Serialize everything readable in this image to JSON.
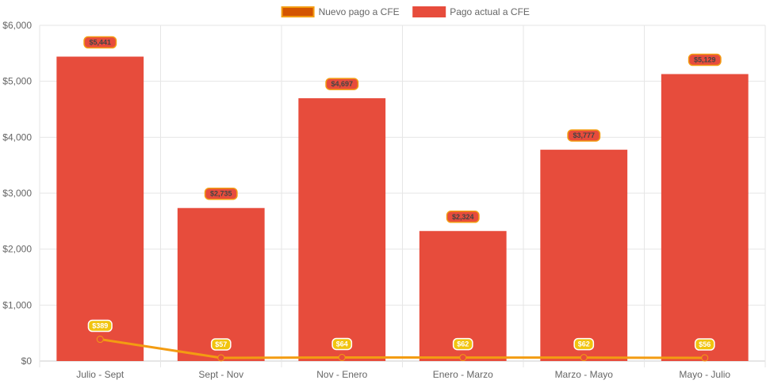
{
  "chart_data": {
    "type": "bar",
    "categories": [
      "Julio - Sept",
      "Sept - Nov",
      "Nov - Enero",
      "Enero - Marzo",
      "Marzo - Mayo",
      "Mayo - Julio"
    ],
    "series": [
      {
        "name": "Nuevo pago a CFE",
        "kind": "line",
        "color": "#f39c12",
        "point_color": "#e74c3c",
        "values": [
          389,
          57,
          64,
          62,
          62,
          56
        ],
        "labels": [
          "$389",
          "$57",
          "$64",
          "$62",
          "$62",
          "$56"
        ]
      },
      {
        "name": "Pago actual a CFE",
        "kind": "bar",
        "color": "#e74c3c",
        "label_bg": "#e74c3c",
        "label_border": "#f39c12",
        "values": [
          5441,
          2735,
          4697,
          2324,
          3777,
          5129
        ],
        "labels": [
          "$5,441",
          "$2,735",
          "$4,697",
          "$2,324",
          "$3,777",
          "$5,129"
        ]
      }
    ],
    "legend": {
      "position": "top",
      "items": [
        {
          "label": "Nuevo pago a CFE",
          "fill": "#d35400",
          "border": "#f39c12"
        },
        {
          "label": "Pago actual a CFE",
          "fill": "#e74c3c",
          "border": "#e74c3c"
        }
      ]
    },
    "ylim": [
      0,
      6000
    ],
    "yticks": [
      0,
      1000,
      2000,
      3000,
      4000,
      5000,
      6000
    ],
    "ytick_labels": [
      "$0",
      "$1,000",
      "$2,000",
      "$3,000",
      "$4,000",
      "$5,000",
      "$6,000"
    ],
    "grid": true,
    "title": "",
    "xlabel": "",
    "ylabel": ""
  }
}
